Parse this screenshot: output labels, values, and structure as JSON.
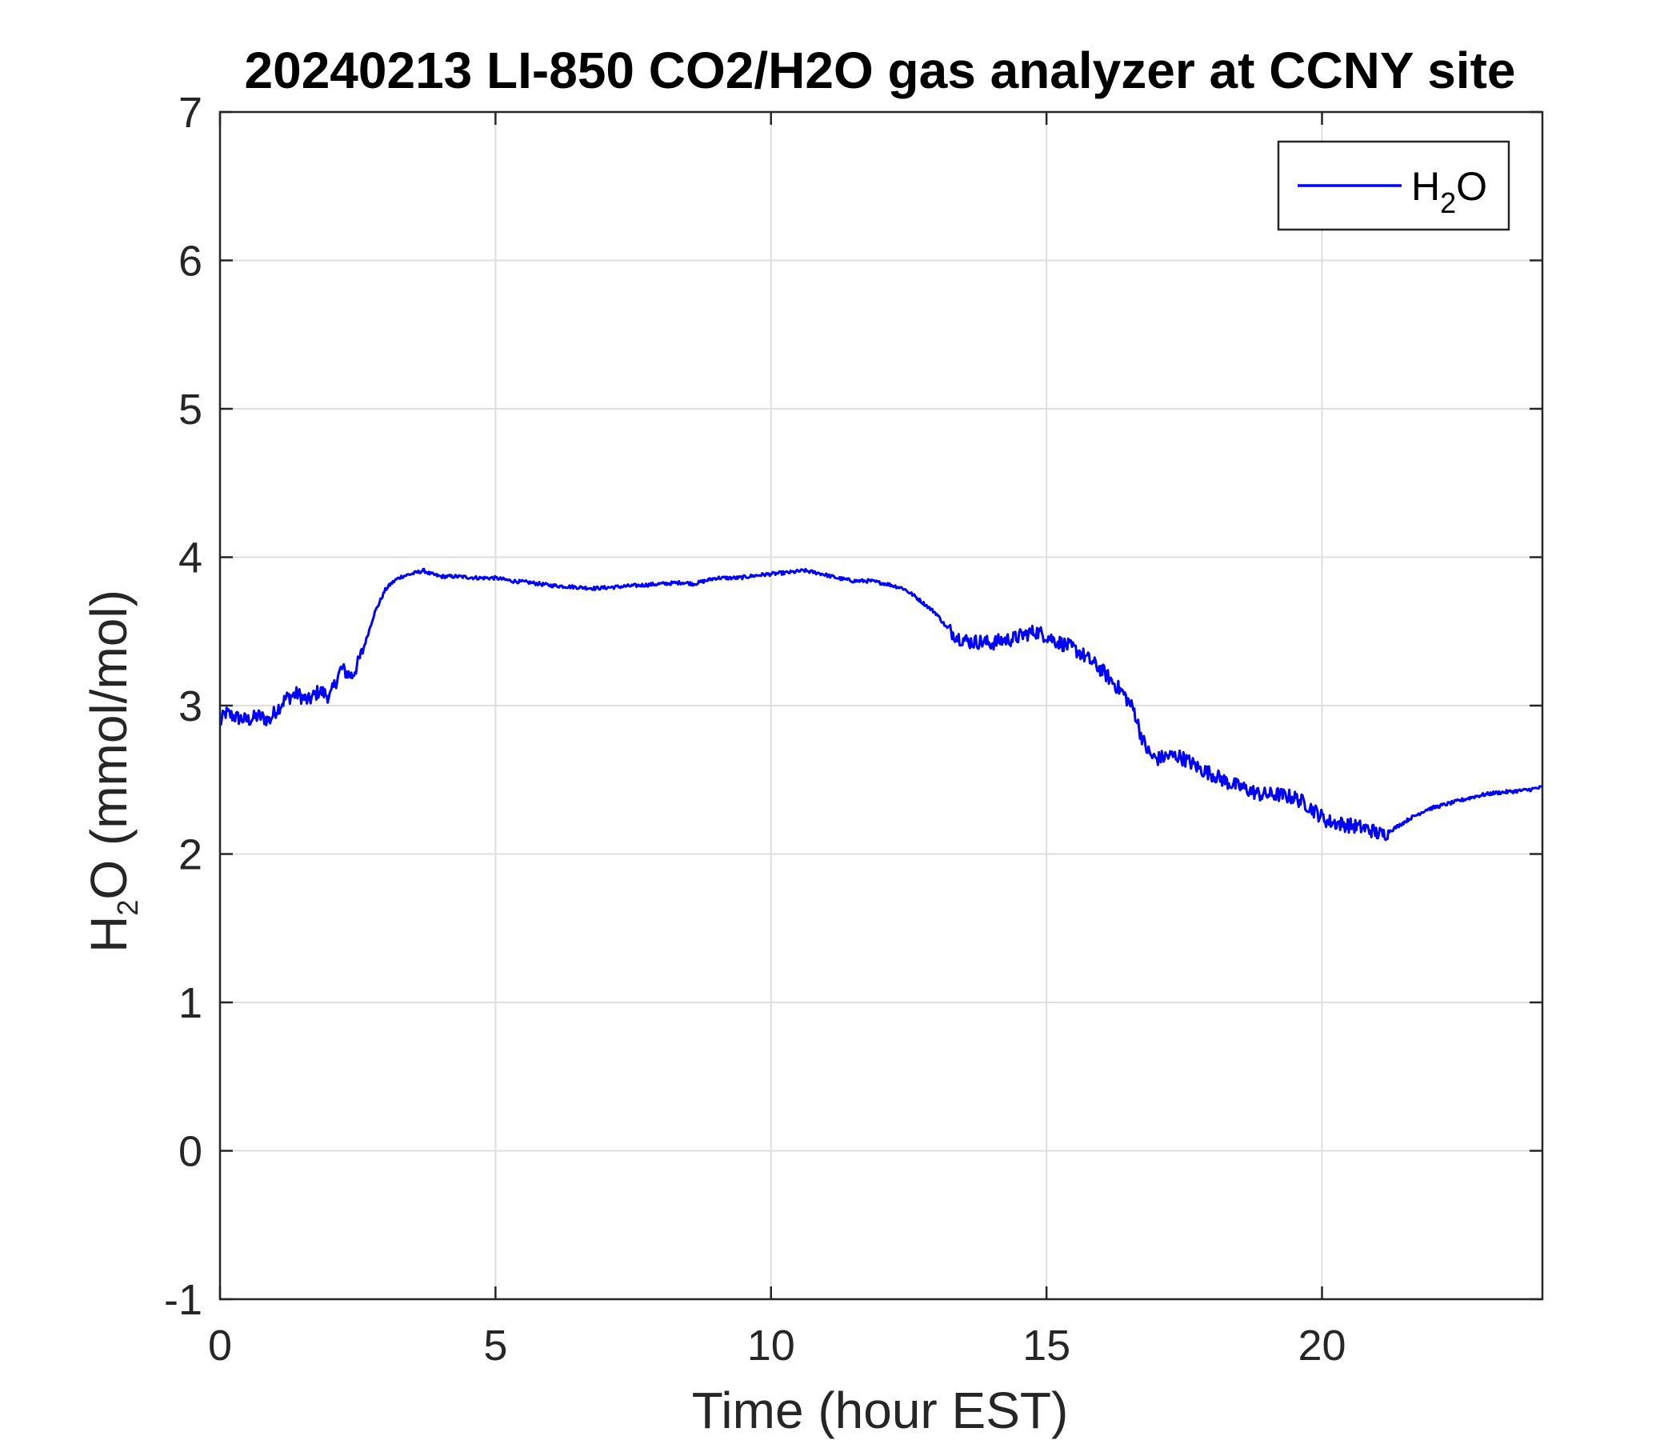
{
  "chart_data": {
    "type": "line",
    "title": "20240213 LI-850 CO2/H2O gas analyzer at CCNY site",
    "xlabel": "Time (hour EST)",
    "ylabel": {
      "main": "H",
      "sub": "2",
      "rest": "O (mmol/mol)"
    },
    "xlim": [
      0,
      24
    ],
    "ylim": [
      -1,
      7
    ],
    "xticks": [
      0,
      5,
      10,
      15,
      20
    ],
    "yticks": [
      -1,
      0,
      1,
      2,
      3,
      4,
      5,
      6,
      7
    ],
    "grid": true,
    "legend_position": "top-right",
    "legend": [
      {
        "main": "H",
        "sub": "2",
        "rest": "O"
      }
    ],
    "colors": {
      "line": "#0000ff",
      "axis": "#262626",
      "grid": "#dfdfdf"
    },
    "series": [
      {
        "x": [
          0,
          0.1,
          0.3,
          0.5,
          0.7,
          0.9,
          1.0,
          1.2,
          1.4,
          1.6,
          1.8,
          2.0,
          2.1,
          2.2,
          2.3,
          2.4,
          2.5,
          2.6,
          2.7,
          2.8,
          2.9,
          3.0,
          3.1,
          3.2,
          3.3,
          3.4,
          3.5,
          3.6,
          3.7,
          3.8,
          4.0,
          4.3,
          4.7,
          5.0,
          5.3,
          5.6,
          6.0,
          6.4,
          6.8,
          7.2,
          7.6,
          8.0,
          8.4,
          8.6,
          8.8,
          9.0,
          9.4,
          9.8,
          10.1,
          10.4,
          10.6,
          10.9,
          11.2,
          11.5,
          11.8,
          12.1,
          12.4,
          12.6,
          12.8,
          13.0,
          13.2,
          13.4,
          13.6,
          13.8,
          14.0,
          14.2,
          14.4,
          14.6,
          14.8,
          15.0,
          15.2,
          15.4,
          15.6,
          15.8,
          16.0,
          16.2,
          16.4,
          16.6,
          16.7,
          16.8,
          16.9,
          17.0,
          17.2,
          17.4,
          17.6,
          17.8,
          18.0,
          18.3,
          18.6,
          18.9,
          19.2,
          19.5,
          19.7,
          19.9,
          20.1,
          20.4,
          20.7,
          20.9,
          21.0,
          21.1,
          21.3,
          21.6,
          21.9,
          22.2,
          22.5,
          22.8,
          23.1,
          23.4,
          23.7,
          24.0
        ],
        "y": [
          2.88,
          2.95,
          2.92,
          2.9,
          2.93,
          2.9,
          2.96,
          3.05,
          3.08,
          3.03,
          3.1,
          3.06,
          3.16,
          3.25,
          3.22,
          3.2,
          3.28,
          3.38,
          3.5,
          3.62,
          3.7,
          3.78,
          3.82,
          3.85,
          3.87,
          3.88,
          3.89,
          3.9,
          3.91,
          3.89,
          3.87,
          3.87,
          3.86,
          3.86,
          3.84,
          3.83,
          3.81,
          3.8,
          3.79,
          3.8,
          3.81,
          3.82,
          3.83,
          3.82,
          3.84,
          3.86,
          3.86,
          3.88,
          3.89,
          3.9,
          3.91,
          3.89,
          3.86,
          3.84,
          3.84,
          3.82,
          3.79,
          3.74,
          3.68,
          3.62,
          3.52,
          3.46,
          3.43,
          3.43,
          3.42,
          3.44,
          3.45,
          3.48,
          3.5,
          3.47,
          3.43,
          3.4,
          3.36,
          3.3,
          3.24,
          3.16,
          3.08,
          2.96,
          2.82,
          2.72,
          2.66,
          2.64,
          2.66,
          2.66,
          2.62,
          2.57,
          2.54,
          2.48,
          2.44,
          2.4,
          2.4,
          2.38,
          2.34,
          2.28,
          2.22,
          2.2,
          2.18,
          2.16,
          2.14,
          2.13,
          2.17,
          2.24,
          2.3,
          2.33,
          2.36,
          2.39,
          2.41,
          2.42,
          2.43,
          2.45
        ]
      }
    ]
  }
}
